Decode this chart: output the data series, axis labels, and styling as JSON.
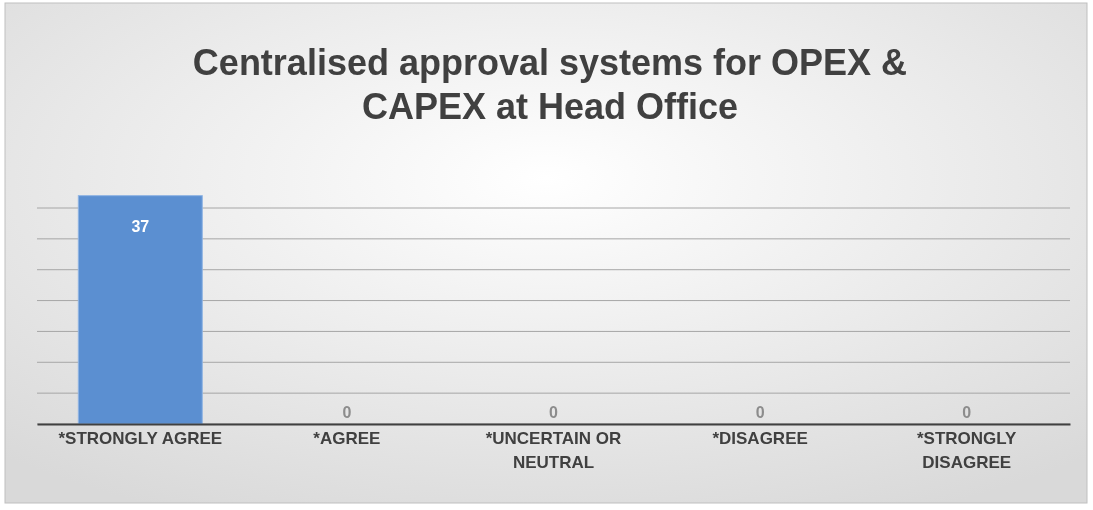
{
  "chart_data": {
    "type": "bar",
    "title": "Centralised approval systems for OPEX & CAPEX at Head Office",
    "categories": [
      "*STRONGLY AGREE",
      "*AGREE",
      "*UNCERTAIN OR NEUTRAL",
      "*DISAGREE",
      "*STRONGLY DISAGREE"
    ],
    "values": [
      37,
      0,
      0,
      0,
      0
    ],
    "color": "#5b8fd1",
    "yticks": [
      0,
      5,
      10,
      15,
      20,
      25,
      30,
      35
    ],
    "grid": "y",
    "tick_labels": "x",
    "data_labels": true
  }
}
